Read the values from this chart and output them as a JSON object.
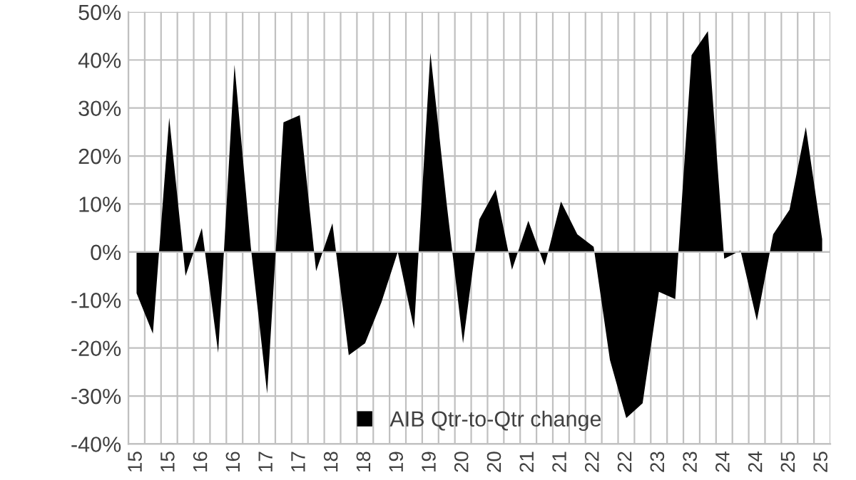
{
  "chart_data": {
    "type": "area",
    "categories": [
      "15",
      null,
      "15",
      null,
      "16",
      null,
      "16",
      null,
      "17",
      null,
      "17",
      null,
      "18",
      null,
      "18",
      null,
      "19",
      null,
      "19",
      null,
      "20",
      null,
      "20",
      null,
      "21",
      null,
      "21",
      null,
      "22",
      null,
      "22",
      null,
      "23",
      null,
      "23",
      null,
      "24",
      null,
      "24",
      null,
      "25",
      null,
      "25"
    ],
    "series": [
      {
        "name": "AIB Qtr-to-Qtr change",
        "color": "#000000",
        "values": [
          -8.6,
          -17,
          28,
          -5,
          5,
          -21,
          39,
          1,
          -29.5,
          27,
          28.5,
          -4,
          6,
          -21.5,
          -19,
          -10.5,
          0,
          -16,
          41.5,
          10,
          -19,
          6.8,
          13,
          -3.7,
          6.5,
          -2.8,
          10.5,
          3.7,
          1.1,
          -22.5,
          -34.6,
          -31.5,
          -8.3,
          -9.8,
          41,
          46,
          -1.4,
          0.3,
          -14.3,
          3.7,
          8.8,
          26,
          2.7
        ]
      }
    ],
    "ylim": [
      -40,
      50
    ],
    "yticks": [
      {
        "value": -40,
        "label": "-40%"
      },
      {
        "value": -30,
        "label": "-30%"
      },
      {
        "value": -20,
        "label": "-20%"
      },
      {
        "value": -10,
        "label": "-10%"
      },
      {
        "value": 0,
        "label": "0%"
      },
      {
        "value": 10,
        "label": "10%"
      },
      {
        "value": 20,
        "label": "20%"
      },
      {
        "value": 30,
        "label": "30%"
      },
      {
        "value": 40,
        "label": "40%"
      },
      {
        "value": 50,
        "label": "50%"
      }
    ],
    "grid": true,
    "legend": "bottom"
  }
}
